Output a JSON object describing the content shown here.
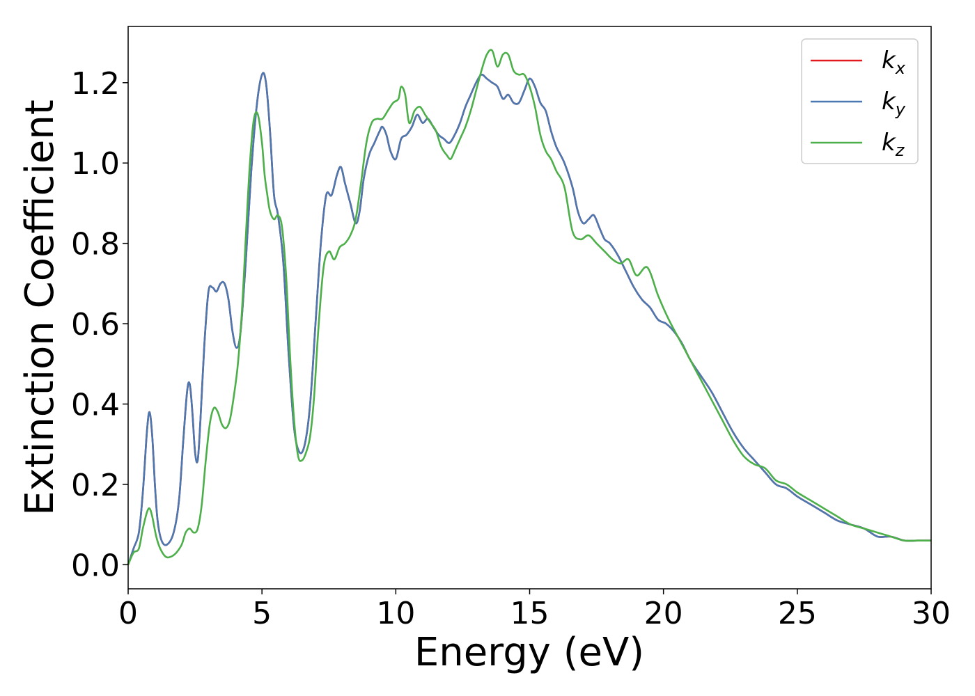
{
  "chart_data": {
    "type": "line",
    "title": "",
    "xlabel": "Energy (eV)",
    "ylabel": "Extinction Coefficient",
    "xlim": [
      0,
      30
    ],
    "ylim": [
      -0.06,
      1.34
    ],
    "xticks": [
      0,
      5,
      10,
      15,
      20,
      25,
      30
    ],
    "xtick_labels": [
      "0",
      "5",
      "10",
      "15",
      "20",
      "25",
      "30"
    ],
    "yticks": [
      0.0,
      0.2,
      0.4,
      0.6,
      0.8,
      1.0,
      1.2
    ],
    "ytick_labels": [
      "0.0",
      "0.2",
      "0.4",
      "0.6",
      "0.8",
      "1.0",
      "1.2"
    ],
    "grid": false,
    "legend_position": "top-right",
    "series": [
      {
        "name": "k_x",
        "label_base": "k",
        "label_sub": "x",
        "color": "#e31a1c",
        "x": [
          0,
          0.2,
          0.4,
          0.55,
          0.7,
          0.8,
          0.9,
          1.0,
          1.1,
          1.25,
          1.45,
          1.7,
          1.9,
          2.05,
          2.2,
          2.3,
          2.4,
          2.5,
          2.6,
          2.7,
          2.85,
          3.0,
          3.15,
          3.3,
          3.45,
          3.6,
          3.75,
          3.9,
          4.05,
          4.2,
          4.4,
          4.6,
          4.8,
          5.0,
          5.15,
          5.3,
          5.45,
          5.6,
          5.8,
          6.0,
          6.2,
          6.4,
          6.6,
          6.8,
          7.0,
          7.2,
          7.4,
          7.6,
          7.8,
          7.95,
          8.1,
          8.3,
          8.5,
          8.65,
          8.8,
          9.0,
          9.2,
          9.4,
          9.5,
          9.65,
          9.8,
          10.0,
          10.2,
          10.4,
          10.6,
          10.8,
          11.0,
          11.2,
          11.4,
          11.6,
          11.8,
          12.0,
          12.2,
          12.4,
          12.6,
          12.8,
          13.0,
          13.2,
          13.4,
          13.6,
          13.8,
          14.0,
          14.2,
          14.4,
          14.6,
          14.8,
          15.0,
          15.2,
          15.4,
          15.6,
          15.8,
          16.0,
          16.3,
          16.6,
          16.8,
          17.0,
          17.2,
          17.4,
          17.6,
          17.8,
          18.0,
          18.3,
          18.6,
          18.9,
          19.2,
          19.5,
          19.8,
          20.1,
          20.4,
          20.7,
          21.0,
          21.4,
          21.8,
          22.2,
          22.6,
          23.0,
          23.4,
          23.8,
          24.2,
          24.6,
          25.0,
          25.5,
          26.0,
          26.5,
          27.0,
          27.5,
          28.0,
          28.5,
          29.0,
          29.5,
          30.0
        ],
        "y": [
          0.0,
          0.04,
          0.08,
          0.18,
          0.33,
          0.38,
          0.32,
          0.2,
          0.11,
          0.06,
          0.05,
          0.08,
          0.16,
          0.3,
          0.43,
          0.45,
          0.38,
          0.28,
          0.26,
          0.36,
          0.55,
          0.68,
          0.69,
          0.68,
          0.7,
          0.7,
          0.66,
          0.58,
          0.54,
          0.58,
          0.76,
          0.98,
          1.14,
          1.22,
          1.2,
          1.08,
          0.92,
          0.87,
          0.75,
          0.52,
          0.34,
          0.28,
          0.3,
          0.4,
          0.6,
          0.8,
          0.92,
          0.92,
          0.97,
          0.99,
          0.95,
          0.9,
          0.85,
          0.88,
          0.96,
          1.02,
          1.05,
          1.08,
          1.09,
          1.07,
          1.03,
          1.01,
          1.06,
          1.07,
          1.09,
          1.12,
          1.1,
          1.11,
          1.09,
          1.07,
          1.06,
          1.05,
          1.07,
          1.1,
          1.14,
          1.17,
          1.2,
          1.22,
          1.21,
          1.2,
          1.19,
          1.16,
          1.17,
          1.15,
          1.15,
          1.18,
          1.21,
          1.19,
          1.15,
          1.13,
          1.08,
          1.04,
          1.0,
          0.94,
          0.88,
          0.85,
          0.86,
          0.87,
          0.84,
          0.81,
          0.8,
          0.77,
          0.73,
          0.69,
          0.66,
          0.64,
          0.61,
          0.6,
          0.58,
          0.55,
          0.51,
          0.47,
          0.43,
          0.38,
          0.33,
          0.29,
          0.26,
          0.23,
          0.2,
          0.19,
          0.17,
          0.15,
          0.13,
          0.11,
          0.1,
          0.09,
          0.07,
          0.07,
          0.06,
          0.06,
          0.06
        ]
      },
      {
        "name": "k_y",
        "label_base": "k",
        "label_sub": "y",
        "color": "#4b78b0",
        "x": [
          0,
          0.2,
          0.4,
          0.55,
          0.7,
          0.8,
          0.9,
          1.0,
          1.1,
          1.25,
          1.45,
          1.7,
          1.9,
          2.05,
          2.2,
          2.3,
          2.4,
          2.5,
          2.6,
          2.7,
          2.85,
          3.0,
          3.15,
          3.3,
          3.45,
          3.6,
          3.75,
          3.9,
          4.05,
          4.2,
          4.4,
          4.6,
          4.8,
          5.0,
          5.15,
          5.3,
          5.45,
          5.6,
          5.8,
          6.0,
          6.2,
          6.4,
          6.6,
          6.8,
          7.0,
          7.2,
          7.4,
          7.6,
          7.8,
          7.95,
          8.1,
          8.3,
          8.5,
          8.65,
          8.8,
          9.0,
          9.2,
          9.4,
          9.5,
          9.65,
          9.8,
          10.0,
          10.2,
          10.4,
          10.6,
          10.8,
          11.0,
          11.2,
          11.4,
          11.6,
          11.8,
          12.0,
          12.2,
          12.4,
          12.6,
          12.8,
          13.0,
          13.2,
          13.4,
          13.6,
          13.8,
          14.0,
          14.2,
          14.4,
          14.6,
          14.8,
          15.0,
          15.2,
          15.4,
          15.6,
          15.8,
          16.0,
          16.3,
          16.6,
          16.8,
          17.0,
          17.2,
          17.4,
          17.6,
          17.8,
          18.0,
          18.3,
          18.6,
          18.9,
          19.2,
          19.5,
          19.8,
          20.1,
          20.4,
          20.7,
          21.0,
          21.4,
          21.8,
          22.2,
          22.6,
          23.0,
          23.4,
          23.8,
          24.2,
          24.6,
          25.0,
          25.5,
          26.0,
          26.5,
          27.0,
          27.5,
          28.0,
          28.5,
          29.0,
          29.5,
          30.0
        ],
        "y": [
          0.0,
          0.04,
          0.08,
          0.18,
          0.33,
          0.38,
          0.32,
          0.2,
          0.11,
          0.06,
          0.05,
          0.08,
          0.16,
          0.3,
          0.43,
          0.45,
          0.38,
          0.28,
          0.26,
          0.36,
          0.55,
          0.68,
          0.69,
          0.68,
          0.7,
          0.7,
          0.66,
          0.58,
          0.54,
          0.58,
          0.76,
          0.98,
          1.14,
          1.22,
          1.2,
          1.08,
          0.92,
          0.87,
          0.75,
          0.52,
          0.34,
          0.28,
          0.3,
          0.4,
          0.6,
          0.8,
          0.92,
          0.92,
          0.97,
          0.99,
          0.95,
          0.9,
          0.85,
          0.88,
          0.96,
          1.02,
          1.05,
          1.08,
          1.09,
          1.07,
          1.03,
          1.01,
          1.06,
          1.07,
          1.09,
          1.12,
          1.1,
          1.11,
          1.09,
          1.07,
          1.06,
          1.05,
          1.07,
          1.1,
          1.14,
          1.17,
          1.2,
          1.22,
          1.21,
          1.2,
          1.19,
          1.16,
          1.17,
          1.15,
          1.15,
          1.18,
          1.21,
          1.19,
          1.15,
          1.13,
          1.08,
          1.04,
          1.0,
          0.94,
          0.88,
          0.85,
          0.86,
          0.87,
          0.84,
          0.81,
          0.8,
          0.77,
          0.73,
          0.69,
          0.66,
          0.64,
          0.61,
          0.6,
          0.58,
          0.55,
          0.51,
          0.47,
          0.43,
          0.38,
          0.33,
          0.29,
          0.26,
          0.23,
          0.2,
          0.19,
          0.17,
          0.15,
          0.13,
          0.11,
          0.1,
          0.09,
          0.07,
          0.07,
          0.06,
          0.06,
          0.06
        ]
      },
      {
        "name": "k_z",
        "label_base": "k",
        "label_sub": "z",
        "color": "#4daf4a",
        "x": [
          0,
          0.2,
          0.4,
          0.55,
          0.7,
          0.8,
          0.9,
          1.05,
          1.2,
          1.4,
          1.6,
          1.8,
          2.0,
          2.15,
          2.3,
          2.45,
          2.6,
          2.75,
          2.9,
          3.05,
          3.2,
          3.35,
          3.5,
          3.65,
          3.8,
          3.95,
          4.1,
          4.25,
          4.4,
          4.55,
          4.7,
          4.85,
          5.0,
          5.1,
          5.2,
          5.3,
          5.45,
          5.6,
          5.75,
          5.9,
          6.05,
          6.2,
          6.35,
          6.5,
          6.65,
          6.8,
          6.95,
          7.1,
          7.3,
          7.5,
          7.7,
          7.9,
          8.1,
          8.3,
          8.5,
          8.7,
          8.9,
          9.1,
          9.3,
          9.5,
          9.7,
          9.9,
          10.1,
          10.2,
          10.35,
          10.5,
          10.7,
          10.9,
          11.1,
          11.3,
          11.5,
          11.7,
          11.9,
          12.05,
          12.2,
          12.4,
          12.6,
          12.8,
          13.0,
          13.2,
          13.4,
          13.6,
          13.8,
          14.0,
          14.2,
          14.4,
          14.6,
          14.8,
          15.0,
          15.2,
          15.4,
          15.6,
          15.8,
          16.0,
          16.3,
          16.6,
          16.9,
          17.2,
          17.5,
          17.8,
          18.1,
          18.4,
          18.7,
          19.0,
          19.4,
          19.8,
          20.2,
          20.6,
          21.0,
          21.4,
          21.8,
          22.2,
          22.6,
          23.0,
          23.4,
          23.8,
          24.2,
          24.6,
          25.0,
          25.5,
          26.0,
          26.5,
          27.0,
          27.5,
          28.0,
          28.5,
          29.0,
          29.5,
          30.0
        ],
        "y": [
          0.0,
          0.03,
          0.04,
          0.09,
          0.13,
          0.14,
          0.12,
          0.07,
          0.04,
          0.02,
          0.02,
          0.03,
          0.05,
          0.08,
          0.09,
          0.08,
          0.09,
          0.15,
          0.26,
          0.35,
          0.39,
          0.38,
          0.35,
          0.34,
          0.36,
          0.42,
          0.5,
          0.63,
          0.82,
          1.0,
          1.11,
          1.12,
          1.05,
          0.97,
          0.92,
          0.88,
          0.86,
          0.87,
          0.84,
          0.72,
          0.52,
          0.36,
          0.27,
          0.26,
          0.28,
          0.32,
          0.42,
          0.58,
          0.74,
          0.78,
          0.76,
          0.79,
          0.8,
          0.82,
          0.86,
          0.95,
          1.05,
          1.1,
          1.11,
          1.11,
          1.13,
          1.15,
          1.16,
          1.19,
          1.17,
          1.1,
          1.13,
          1.14,
          1.12,
          1.1,
          1.08,
          1.04,
          1.02,
          1.01,
          1.03,
          1.06,
          1.09,
          1.13,
          1.18,
          1.23,
          1.27,
          1.28,
          1.24,
          1.27,
          1.27,
          1.23,
          1.22,
          1.22,
          1.19,
          1.14,
          1.07,
          1.03,
          1.01,
          0.98,
          0.94,
          0.83,
          0.81,
          0.82,
          0.8,
          0.78,
          0.76,
          0.75,
          0.76,
          0.72,
          0.74,
          0.67,
          0.61,
          0.56,
          0.51,
          0.46,
          0.41,
          0.36,
          0.31,
          0.27,
          0.25,
          0.24,
          0.21,
          0.2,
          0.18,
          0.16,
          0.14,
          0.12,
          0.1,
          0.09,
          0.08,
          0.07,
          0.06,
          0.06,
          0.06
        ]
      }
    ]
  }
}
